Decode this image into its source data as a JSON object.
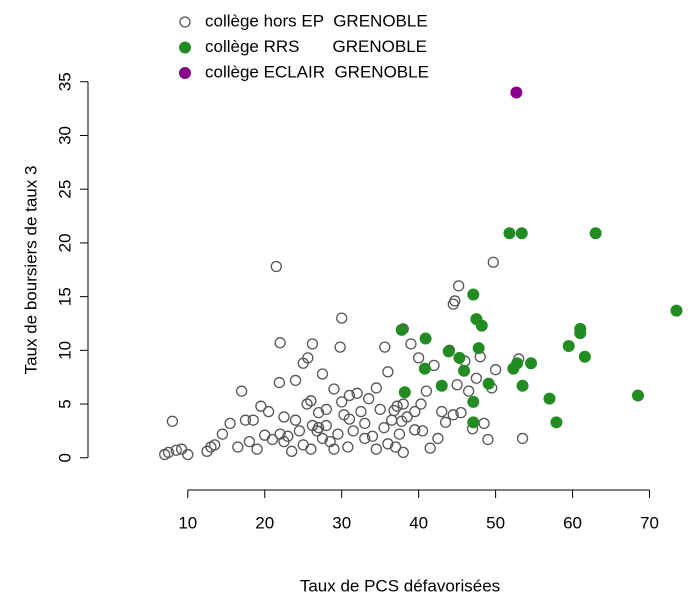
{
  "chart_data": {
    "type": "scatter",
    "x_label": "Taux de PCS défavorisées",
    "y_label": "Taux de boursiers de taux 3",
    "xlim": [
      6,
      75
    ],
    "ylim": [
      -3,
      36
    ],
    "xticks": [
      10,
      20,
      30,
      40,
      50,
      60,
      70
    ],
    "yticks": [
      0,
      5,
      10,
      15,
      20,
      25,
      30,
      35
    ],
    "legend": "top-left",
    "series": [
      {
        "name": "collège hors EP  GRENOBLE",
        "color": "#555555",
        "marker": "open",
        "x": [
          21.5,
          30,
          49.7,
          45.2,
          44.7,
          44.5,
          38,
          22,
          26.2,
          29.8,
          35.6,
          27.5,
          17,
          21.9,
          24,
          25,
          25.6,
          8,
          7,
          7.5,
          8.5,
          9.2,
          10,
          12.5,
          13,
          13.5,
          14.5,
          15.5,
          16.5,
          17.5,
          18,
          18.5,
          19,
          19.5,
          20.5,
          21,
          22,
          22.5,
          23,
          23.5,
          24,
          24.5,
          25,
          25.5,
          26,
          26.2,
          26.8,
          27,
          27.5,
          28,
          28.5,
          29,
          29.5,
          30,
          30.3,
          30.8,
          31,
          31.5,
          32,
          32.5,
          33,
          33.5,
          34,
          34.5,
          35,
          35.5,
          36,
          36.5,
          37,
          37.2,
          37.5,
          38,
          38.5,
          39,
          39.5,
          40,
          40.5,
          41,
          42,
          42.5,
          43,
          43.5,
          44,
          44.5,
          45,
          45.5,
          46,
          46.5,
          47,
          47.5,
          48,
          48.5,
          49,
          49.5,
          50,
          53,
          53.5,
          36,
          38,
          39.5,
          33,
          26,
          28,
          31,
          34.5,
          36.8,
          37.8,
          40.3,
          41.5,
          22.5,
          20,
          27,
          29
        ],
        "values": [
          17.8,
          13,
          18.2,
          16,
          14.6,
          14.3,
          12,
          10.7,
          10.6,
          10.3,
          10.3,
          7.8,
          6.2,
          7.0,
          7.2,
          8.8,
          9.3,
          3.4,
          0.3,
          0.5,
          0.7,
          0.8,
          0.3,
          0.6,
          1.0,
          1.2,
          2.2,
          3.2,
          1.0,
          3.5,
          1.5,
          3.5,
          0.8,
          4.8,
          4.3,
          1.7,
          2.2,
          1.5,
          2.0,
          0.6,
          3.5,
          2.5,
          1.2,
          5.0,
          0.8,
          3.0,
          2.5,
          4.2,
          1.8,
          3.0,
          1.5,
          0.8,
          2.2,
          5.2,
          4.0,
          1.0,
          5.8,
          2.5,
          6.0,
          4.3,
          1.8,
          5.5,
          2.0,
          6.5,
          4.5,
          2.8,
          8.0,
          3.5,
          1.0,
          4.8,
          2.2,
          5.0,
          3.8,
          10.6,
          4.3,
          9.3,
          2.5,
          6.2,
          8.6,
          1.8,
          4.3,
          3.3,
          10.0,
          4.0,
          6.8,
          4.2,
          9.0,
          6.2,
          2.7,
          7.4,
          9.4,
          3.2,
          1.7,
          6.5,
          8.2,
          9.2,
          1.8,
          1.3,
          0.5,
          2.6,
          3.2,
          5.3,
          4.5,
          3.6,
          0.8,
          4.4,
          3.4,
          5.0,
          0.9,
          3.8,
          2.1,
          2.8,
          6.4
        ]
      },
      {
        "name": "collège RRS       GRENOBLE",
        "color": "#228b22",
        "marker": "filled",
        "x": [
          47.1,
          37.8,
          40.9,
          43.9,
          45.3,
          45.9,
          47.5,
          48.2,
          47.8,
          49.1,
          52.3,
          52.8,
          54.6,
          51.8,
          53.4,
          63.0,
          73.5,
          61.0,
          61.0,
          61.6,
          59.5,
          57.0,
          57.9,
          68.5,
          47.1,
          47.1,
          38.2,
          43.0,
          53.5,
          40.8
        ],
        "values": [
          15.2,
          11.9,
          11.1,
          9.9,
          9.3,
          8.1,
          12.9,
          12.3,
          10.2,
          6.9,
          8.3,
          8.8,
          8.8,
          20.9,
          20.9,
          20.9,
          13.7,
          12.0,
          11.6,
          9.4,
          10.4,
          5.5,
          3.3,
          5.8,
          5.2,
          3.3,
          6.1,
          6.7,
          6.7,
          8.3
        ]
      },
      {
        "name": "collège ECLAIR  GRENOBLE",
        "color": "#8b008b",
        "marker": "filled",
        "x": [
          52.7
        ],
        "values": [
          34
        ]
      }
    ]
  }
}
